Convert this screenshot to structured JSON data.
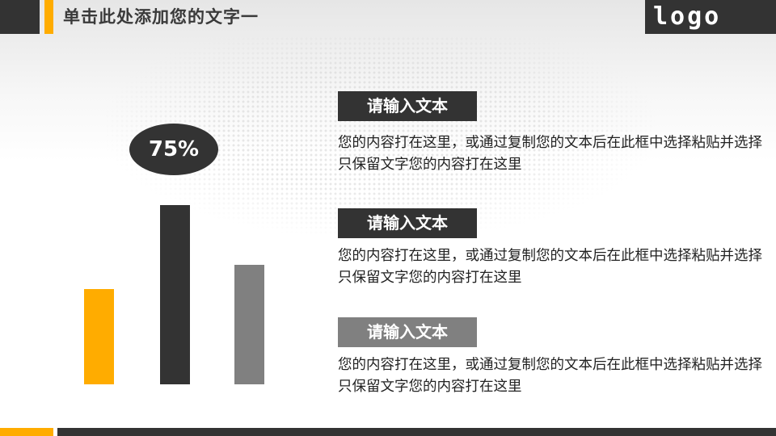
{
  "header": {
    "title": "单击此处添加您的文字一",
    "logo": "logo"
  },
  "colors": {
    "accent": "#ffac00",
    "dark": "#333333",
    "gray": "#808080"
  },
  "chart_data": {
    "type": "bar",
    "categories": [
      "",
      "",
      ""
    ],
    "values": [
      40,
      75,
      50
    ],
    "colors": [
      "#ffac00",
      "#333333",
      "#808080"
    ],
    "ylim": [
      0,
      100
    ],
    "data_labels": [
      "",
      "75%",
      ""
    ],
    "grid": false
  },
  "items": [
    {
      "heading": "请输入文本",
      "text": "您的内容打在这里，或通过复制您的文本后在此框中选择粘贴并选择只保留文字您的内容打在这里",
      "color": "#333333"
    },
    {
      "heading": "请输入文本",
      "text": "您的内容打在这里，或通过复制您的文本后在此框中选择粘贴并选择只保留文字您的内容打在这里",
      "color": "#333333"
    },
    {
      "heading": "请输入文本",
      "text": "您的内容打在这里，或通过复制您的文本后在此框中选择粘贴并选择只保留文字您的内容打在这里",
      "color": "#808080"
    }
  ]
}
